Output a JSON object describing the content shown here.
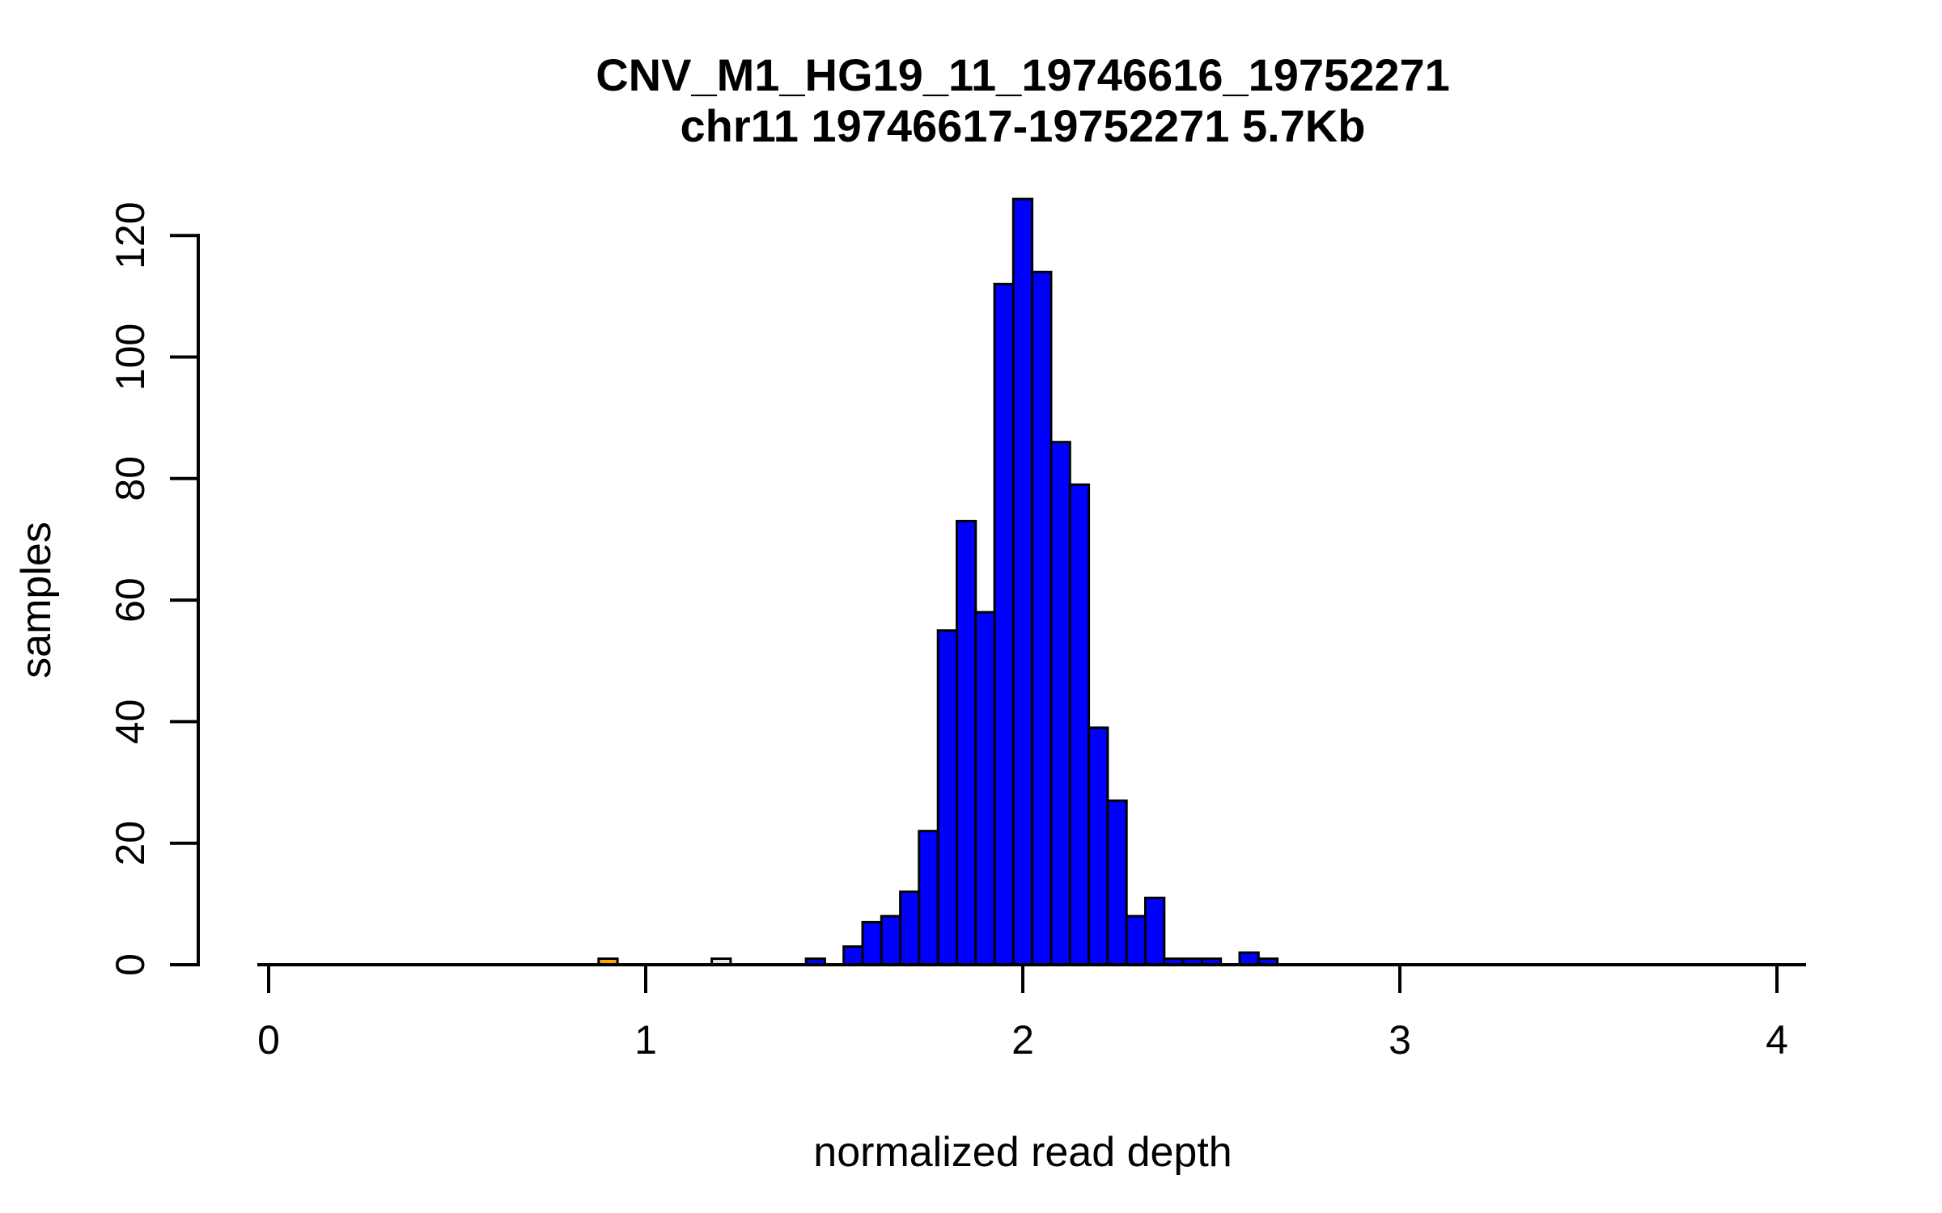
{
  "figure": {
    "background": "#FFFFFF"
  },
  "chart_data": {
    "type": "bar",
    "subtype": "histogram",
    "title": "CNV_M1_HG19_11_19746616_19752271",
    "subtitle": "chr11 19746617-19752271 5.7Kb",
    "xlabel": "normalized read depth",
    "ylabel": "samples",
    "xlim": [
      0,
      4
    ],
    "ylim": [
      0,
      126
    ],
    "xticks": [
      0,
      1,
      2,
      3,
      4
    ],
    "yticks": [
      0,
      20,
      40,
      60,
      80,
      100,
      120
    ],
    "grid": false,
    "legend_position": "none",
    "bin_width": 0.05,
    "colors": {
      "default_fill": "#0000FF",
      "cnv_fill": "#FFA500",
      "reference_fill": "#E5E5E5",
      "bar_edge": "#000000",
      "axis": "#000000"
    },
    "bars": [
      {
        "x": 0.9,
        "count": 1,
        "fill": "cnv"
      },
      {
        "x": 1.2,
        "count": 1,
        "fill": "reference"
      },
      {
        "x": 1.45,
        "count": 1,
        "fill": "default"
      },
      {
        "x": 1.5,
        "count": 0,
        "fill": "default"
      },
      {
        "x": 1.55,
        "count": 3,
        "fill": "default"
      },
      {
        "x": 1.6,
        "count": 7,
        "fill": "default"
      },
      {
        "x": 1.65,
        "count": 8,
        "fill": "default"
      },
      {
        "x": 1.7,
        "count": 12,
        "fill": "default"
      },
      {
        "x": 1.75,
        "count": 22,
        "fill": "default"
      },
      {
        "x": 1.8,
        "count": 55,
        "fill": "default"
      },
      {
        "x": 1.85,
        "count": 73,
        "fill": "default"
      },
      {
        "x": 1.9,
        "count": 58,
        "fill": "default"
      },
      {
        "x": 1.95,
        "count": 112,
        "fill": "default"
      },
      {
        "x": 2.0,
        "count": 126,
        "fill": "default"
      },
      {
        "x": 2.05,
        "count": 114,
        "fill": "default"
      },
      {
        "x": 2.1,
        "count": 86,
        "fill": "default"
      },
      {
        "x": 2.15,
        "count": 79,
        "fill": "default"
      },
      {
        "x": 2.2,
        "count": 39,
        "fill": "default"
      },
      {
        "x": 2.25,
        "count": 27,
        "fill": "default"
      },
      {
        "x": 2.3,
        "count": 8,
        "fill": "default"
      },
      {
        "x": 2.35,
        "count": 11,
        "fill": "default"
      },
      {
        "x": 2.4,
        "count": 1,
        "fill": "default"
      },
      {
        "x": 2.45,
        "count": 1,
        "fill": "default"
      },
      {
        "x": 2.5,
        "count": 1,
        "fill": "default"
      },
      {
        "x": 2.55,
        "count": 0,
        "fill": "default"
      },
      {
        "x": 2.6,
        "count": 2,
        "fill": "default"
      },
      {
        "x": 2.65,
        "count": 1,
        "fill": "default"
      }
    ]
  }
}
